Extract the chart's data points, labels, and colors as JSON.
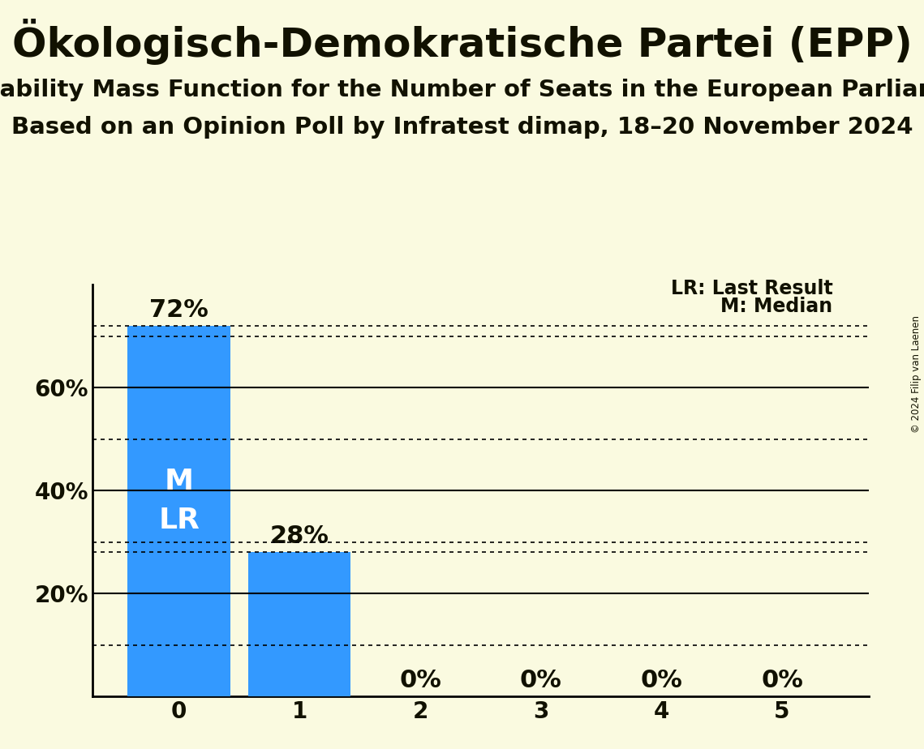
{
  "title": "Ökologisch-Demokratische Partei (EPP)",
  "subtitle1": "Probability Mass Function for the Number of Seats in the European Parliament",
  "subtitle2": "Based on an Opinion Poll by Infratest dimap, 18–20 November 2024",
  "copyright": "© 2024 Filip van Laenen",
  "categories": [
    0,
    1,
    2,
    3,
    4,
    5
  ],
  "values": [
    0.72,
    0.28,
    0.0,
    0.0,
    0.0,
    0.0
  ],
  "bar_color": "#3399FF",
  "background_color": "#FAFAE0",
  "text_color": "#111100",
  "median": 0,
  "last_result": 0,
  "ylim": [
    0,
    0.8
  ],
  "yticks": [
    0.2,
    0.4,
    0.6
  ],
  "ytick_labels": [
    "20%",
    "40%",
    "60%"
  ],
  "legend_lr": "LR: Last Result",
  "legend_m": "M: Median",
  "solid_line_levels": [
    0.2,
    0.4,
    0.6
  ],
  "dotted_line_levels": [
    0.1,
    0.28,
    0.3,
    0.5,
    0.7,
    0.72
  ],
  "label_fontsize": 20,
  "title_fontsize": 36,
  "subtitle_fontsize": 21,
  "bar_label_fontsize": 22,
  "inside_label_fontsize": 26
}
